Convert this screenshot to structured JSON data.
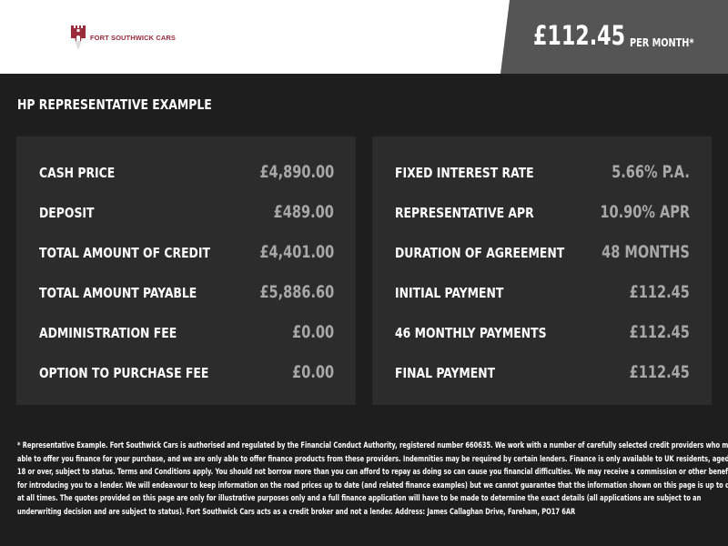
{
  "header": {
    "logo_text": "FORT SOUTHWICK CARS",
    "price": "£112.45",
    "per_month": "PER MONTH*"
  },
  "title": "HP REPRESENTATIVE EXAMPLE",
  "left_panel": [
    {
      "label": "CASH PRICE",
      "value": "£4,890.00"
    },
    {
      "label": "DEPOSIT",
      "value": "£489.00"
    },
    {
      "label": "TOTAL AMOUNT OF CREDIT",
      "value": "£4,401.00"
    },
    {
      "label": "TOTAL AMOUNT PAYABLE",
      "value": "£5,886.60"
    },
    {
      "label": "ADMINISTRATION FEE",
      "value": "£0.00"
    },
    {
      "label": "OPTION TO PURCHASE FEE",
      "value": "£0.00"
    }
  ],
  "right_panel": [
    {
      "label": "FIXED INTEREST RATE",
      "value": "5.66% P.A."
    },
    {
      "label": "REPRESENTATIVE APR",
      "value": "10.90% APR"
    },
    {
      "label": "DURATION OF AGREEMENT",
      "value": "48 MONTHS"
    },
    {
      "label": "INITIAL PAYMENT",
      "value": "£112.45"
    },
    {
      "label": "46 MONTHLY PAYMENTS",
      "value": "£112.45"
    },
    {
      "label": "FINAL PAYMENT",
      "value": "£112.45"
    }
  ],
  "disclaimer": [
    "* Representative Example. Fort Southwick Cars is authorised and regulated by the Financial Conduct Authority, registered number 660635. We work with a number of carefully selected credit providers who may be",
    "able to offer you finance for your purchase, and we are only able to offer finance products from these providers. Indemnities may be required by certain lenders. Finance is only available to UK residents, aged",
    "18 or over, subject to status. Terms and Conditions apply. You should not borrow more than you can afford to repay as doing so can cause you financial difficulties. We may receive a commission or other benefits",
    "for introducing you to a lender. We will endeavour to keep information on the road prices up to date (and related finance examples) but we cannot guarantee that the information shown on this page is up to date",
    "at all times. The quotes provided on this page are only for illustrative purposes only and a full finance application will have to be made to determine the exact details (all applications are subject to an",
    "underwriting decision and are subject to status). Fort Southwick Cars acts as a credit broker and not a lender. Address: James Callaghan Drive, Fareham, PO17 6AR"
  ]
}
